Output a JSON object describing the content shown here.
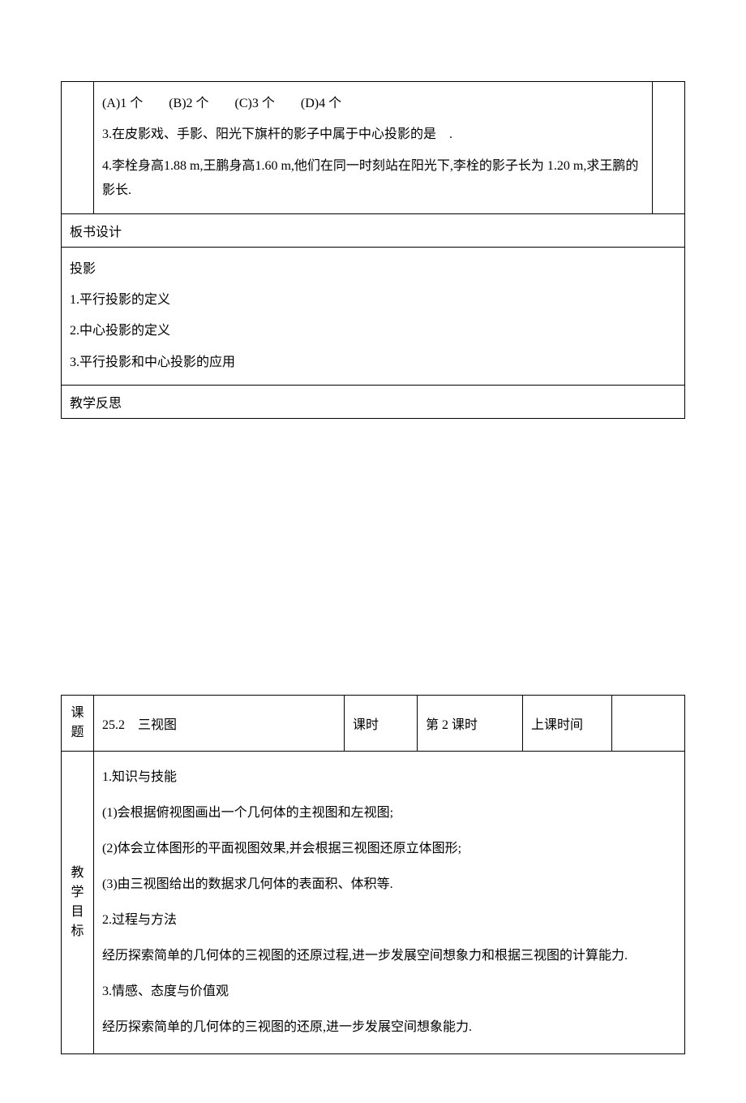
{
  "table1": {
    "row1": {
      "options": "(A)1 个　　(B)2 个　　(C)3 个　　(D)4 个",
      "q3": "3.在皮影戏、手影、阳光下旗杆的影子中属于中心投影的是　.",
      "q4": "4.李栓身高1.88 m,王鹏身高1.60 m,他们在同一时刻站在阳光下,李栓的影子长为 1.20 m,求王鹏的影长."
    },
    "banshu": {
      "title": "板书设计",
      "line1": "投影",
      "line2": "1.平行投影的定义",
      "line3": "2.中心投影的定义",
      "line4": "3.平行投影和中心投影的应用"
    },
    "fansi": "教学反思"
  },
  "table2": {
    "header": {
      "keti_label": "课题",
      "keti_value": "25.2　三视图",
      "keshi_label": "课时",
      "keshi_value": "第 2 课时",
      "shangke_label": "上课时间",
      "shangke_value": ""
    },
    "objectives": {
      "label": "教学目标",
      "l1": "1.知识与技能",
      "l2": "(1)会根据俯视图画出一个几何体的主视图和左视图;",
      "l3": "(2)体会立体图形的平面视图效果,并会根据三视图还原立体图形;",
      "l4": "(3)由三视图给出的数据求几何体的表面积、体积等.",
      "l5": "2.过程与方法",
      "l6": "经历探索简单的几何体的三视图的还原过程,进一步发展空间想象力和根据三视图的计算能力.",
      "l7": "3.情感、态度与价值观",
      "l8": "经历探索简单的几何体的三视图的还原,进一步发展空间想象能力."
    }
  }
}
